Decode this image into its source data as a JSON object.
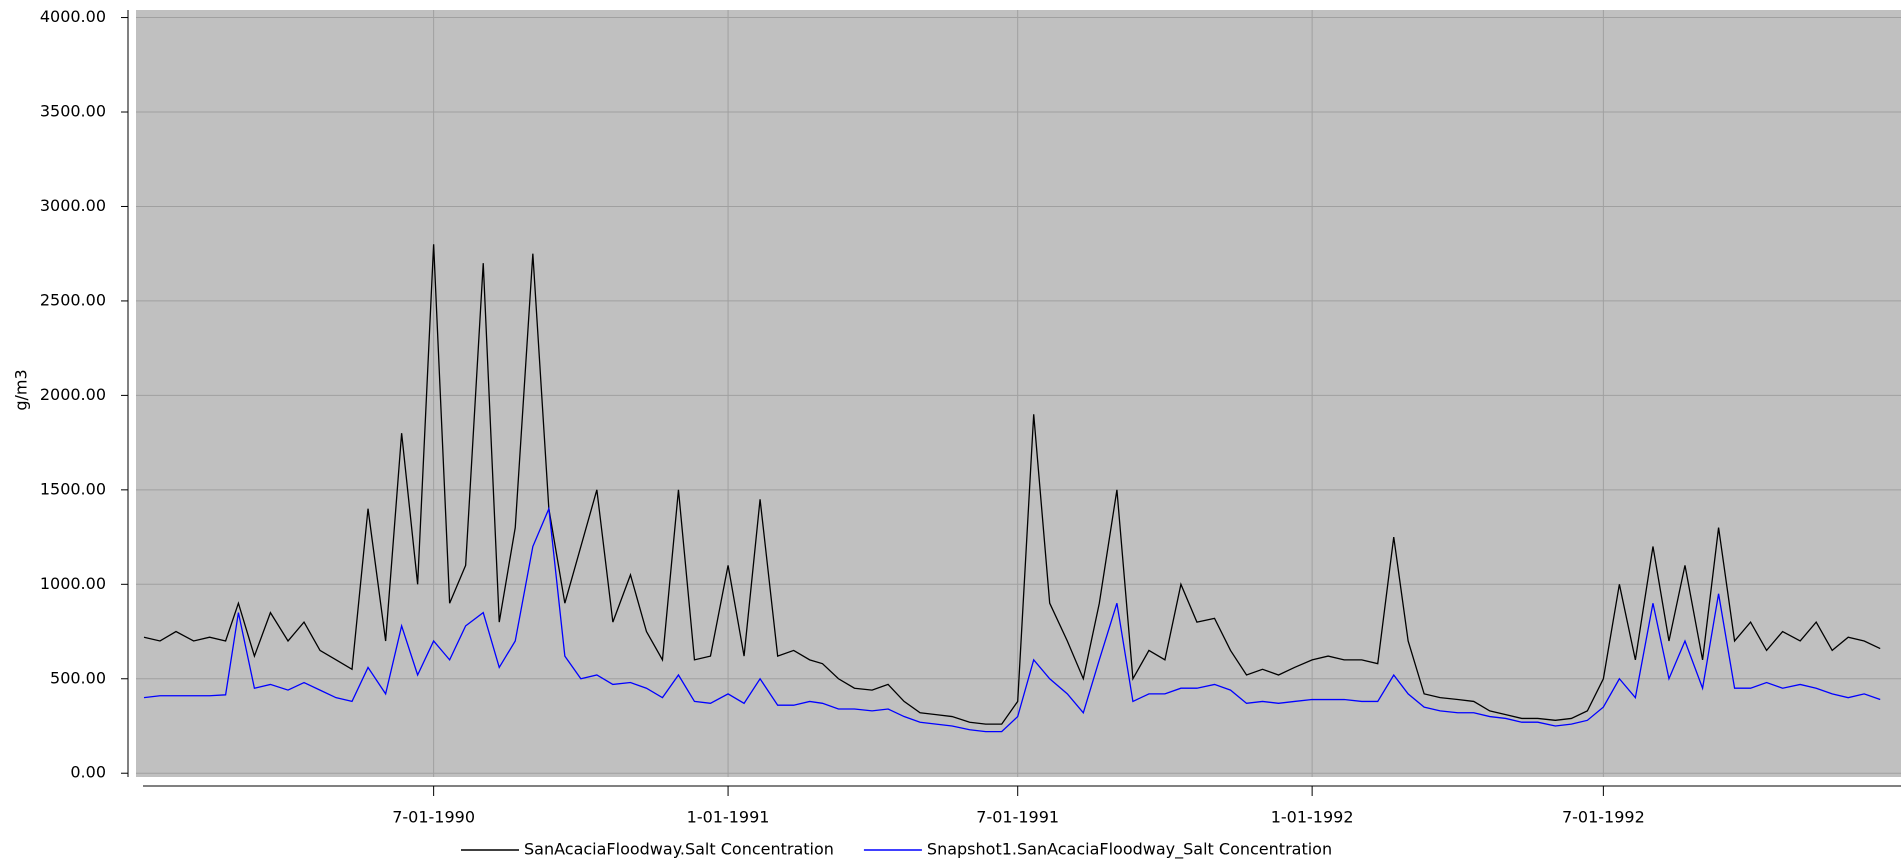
{
  "chart_data": {
    "type": "line",
    "y_label": "g/m3",
    "x": [
      "1990-01-01",
      "1990-01-11",
      "1990-01-21",
      "1990-02-01",
      "1990-02-11",
      "1990-02-21",
      "1990-03-01",
      "1990-03-11",
      "1990-03-21",
      "1990-04-01",
      "1990-04-11",
      "1990-04-21",
      "1990-05-01",
      "1990-05-11",
      "1990-05-21",
      "1990-06-01",
      "1990-06-11",
      "1990-06-21",
      "1990-07-01",
      "1990-07-11",
      "1990-07-21",
      "1990-08-01",
      "1990-08-11",
      "1990-08-21",
      "1990-09-01",
      "1990-09-11",
      "1990-09-21",
      "1990-10-01",
      "1990-10-11",
      "1990-10-21",
      "1990-11-01",
      "1990-11-11",
      "1990-11-21",
      "1990-12-01",
      "1990-12-11",
      "1990-12-21",
      "1991-01-01",
      "1991-01-11",
      "1991-01-21",
      "1991-02-01",
      "1991-02-11",
      "1991-02-21",
      "1991-03-01",
      "1991-03-11",
      "1991-03-21",
      "1991-04-01",
      "1991-04-11",
      "1991-04-21",
      "1991-05-01",
      "1991-05-11",
      "1991-05-21",
      "1991-06-01",
      "1991-06-11",
      "1991-06-21",
      "1991-07-01",
      "1991-07-11",
      "1991-07-21",
      "1991-08-01",
      "1991-08-11",
      "1991-08-21",
      "1991-09-01",
      "1991-09-11",
      "1991-09-21",
      "1991-10-01",
      "1991-10-11",
      "1991-10-21",
      "1991-11-01",
      "1991-11-11",
      "1991-11-21",
      "1991-12-01",
      "1991-12-11",
      "1991-12-21",
      "1992-01-01",
      "1992-01-11",
      "1992-01-21",
      "1992-02-01",
      "1992-02-11",
      "1992-02-21",
      "1992-03-01",
      "1992-03-11",
      "1992-03-21",
      "1992-04-01",
      "1992-04-11",
      "1992-04-21",
      "1992-05-01",
      "1992-05-11",
      "1992-05-21",
      "1992-06-01",
      "1992-06-11",
      "1992-06-21",
      "1992-07-01",
      "1992-07-11",
      "1992-07-21",
      "1992-08-01",
      "1992-08-11",
      "1992-08-21",
      "1992-09-01",
      "1992-09-11",
      "1992-09-21",
      "1992-10-01",
      "1992-10-11",
      "1992-10-21",
      "1992-11-01",
      "1992-11-11",
      "1992-11-21",
      "1992-12-01",
      "1992-12-11",
      "1992-12-21"
    ],
    "series": [
      {
        "name": "SanAcaciaFloodway.Salt Concentration",
        "color": "#000000",
        "values": [
          720,
          700,
          750,
          700,
          720,
          700,
          900,
          620,
          850,
          700,
          800,
          650,
          600,
          550,
          1400,
          700,
          1800,
          1000,
          2800,
          900,
          1100,
          2700,
          800,
          1300,
          2750,
          1400,
          900,
          1200,
          1500,
          800,
          1050,
          750,
          600,
          1500,
          600,
          620,
          1100,
          620,
          1450,
          620,
          650,
          600,
          580,
          500,
          450,
          440,
          470,
          380,
          320,
          310,
          300,
          270,
          260,
          260,
          380,
          1900,
          900,
          700,
          500,
          900,
          1500,
          500,
          650,
          600,
          1000,
          800,
          820,
          650,
          520,
          550,
          520,
          560,
          600,
          620,
          600,
          600,
          580,
          1250,
          700,
          420,
          400,
          390,
          380,
          330,
          310,
          290,
          290,
          280,
          290,
          330,
          500,
          1000,
          600,
          1200,
          700,
          1100,
          600,
          1300,
          700,
          800,
          650,
          750,
          700,
          800,
          650,
          720,
          700,
          660
        ]
      },
      {
        "name": "Snapshot1.SanAcaciaFloodway_Salt Concentration",
        "color": "#0000ff",
        "values": [
          400,
          410,
          410,
          410,
          410,
          415,
          850,
          450,
          470,
          440,
          480,
          440,
          400,
          380,
          560,
          420,
          780,
          520,
          700,
          600,
          780,
          850,
          560,
          700,
          1200,
          1400,
          620,
          500,
          520,
          470,
          480,
          450,
          400,
          520,
          380,
          370,
          420,
          370,
          500,
          360,
          360,
          380,
          370,
          340,
          340,
          330,
          340,
          300,
          270,
          260,
          250,
          230,
          220,
          220,
          300,
          600,
          500,
          420,
          320,
          600,
          900,
          380,
          420,
          420,
          450,
          450,
          470,
          440,
          370,
          380,
          370,
          380,
          390,
          390,
          390,
          380,
          380,
          520,
          420,
          350,
          330,
          320,
          320,
          300,
          290,
          270,
          270,
          250,
          260,
          280,
          350,
          500,
          400,
          900,
          500,
          700,
          450,
          950,
          450,
          450,
          480,
          450,
          470,
          450,
          420,
          400,
          420,
          390
        ]
      }
    ],
    "xlim": [
      "1989-12-27",
      "1993-01-03"
    ],
    "xticks": [
      {
        "value": "1990-07-01",
        "label": "7-01-1990"
      },
      {
        "value": "1991-01-01",
        "label": "1-01-1991"
      },
      {
        "value": "1991-07-01",
        "label": "7-01-1991"
      },
      {
        "value": "1992-01-01",
        "label": "1-01-1992"
      },
      {
        "value": "1992-07-01",
        "label": "7-01-1992"
      }
    ],
    "ylim": [
      -20,
      4040
    ],
    "yticks": [
      {
        "value": 0,
        "label": "0.00"
      },
      {
        "value": 500,
        "label": "500.00"
      },
      {
        "value": 1000,
        "label": "1000.00"
      },
      {
        "value": 1500,
        "label": "1500.00"
      },
      {
        "value": 2000,
        "label": "2000.00"
      },
      {
        "value": 2500,
        "label": "2500.00"
      },
      {
        "value": 3000,
        "label": "3000.00"
      },
      {
        "value": 3500,
        "label": "3500.00"
      },
      {
        "value": 4000,
        "label": "4000.00"
      }
    ],
    "grid": true,
    "legend": "bottom"
  }
}
